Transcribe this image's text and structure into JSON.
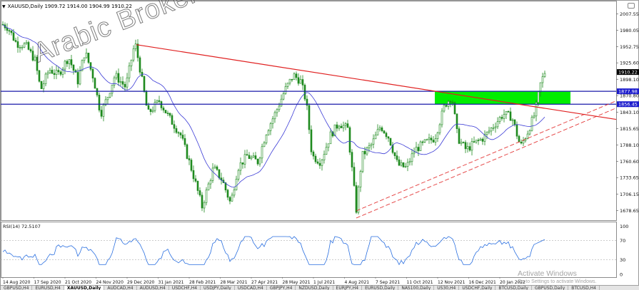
{
  "header": {
    "symbol_line": "XAUUSD,Daily  1909.72 1914.00 1904.99 1910.22"
  },
  "watermark": "Arabic Broker",
  "price_axis": {
    "ticks": [
      "2007.55",
      "1980.05",
      "1952.75",
      "1925.60",
      "1898.10",
      "1870.80",
      "1843.10",
      "1815.65",
      "1788.10",
      "1760.60",
      "1733.65",
      "1706.15",
      "1678.65"
    ],
    "current_price": "1910.22",
    "level_upper": "1877.98",
    "level_lower": "1856.45"
  },
  "rsi": {
    "label": "RSI(14) 72.5107",
    "levels": [
      "70",
      "30",
      "0"
    ],
    "top_value": "100"
  },
  "time_axis": {
    "labels": [
      "14 Aug 2020",
      "17 Sep 2020",
      "21 Oct 2020",
      "24 Nov 2020",
      "29 Dec 2020",
      "31 Jan 2021",
      "28 Feb 2021",
      "28 Mar 2021",
      "27 Apr 2021",
      "28 May 2021",
      "1 Jul 2021",
      "4 Aug 2021",
      "7 Sep 2021",
      "11 Oct 2021",
      "12 Nov 2021",
      "16 Dec 2021",
      "20 Jan 2022"
    ]
  },
  "tabs": [
    "GBPUSD,H4",
    "EURUSD,H4",
    "XAUUSD,Daily",
    "AUDCAD,H4",
    "AUDUSD,H4",
    "USDCHF,H4",
    "USDJPY,Daily",
    "USDCAD,H4",
    "GBPJPY,H4",
    "NZDUSD,Daily",
    "EURJPY,H4",
    "EURUSD,Daily",
    "NAS100,Daily",
    "US30,H4",
    "USDCHF,Daily",
    "BTCUSD,Daily",
    "GBPUSD,Daily",
    "BTCUSD,H4"
  ],
  "active_tab_index": 2,
  "activate_windows": {
    "title": "Activate Windows",
    "subtitle": "Go to Settings to activate Windows."
  },
  "colors": {
    "candles": "#1e8a1e",
    "moving_average": "#3b3bd6",
    "resistance_line": "#e02020",
    "support_band": "#e02020",
    "level_lines": "#1a1aaa",
    "zone": "#00ee00",
    "rsi_line": "#2a6fe0"
  }
}
